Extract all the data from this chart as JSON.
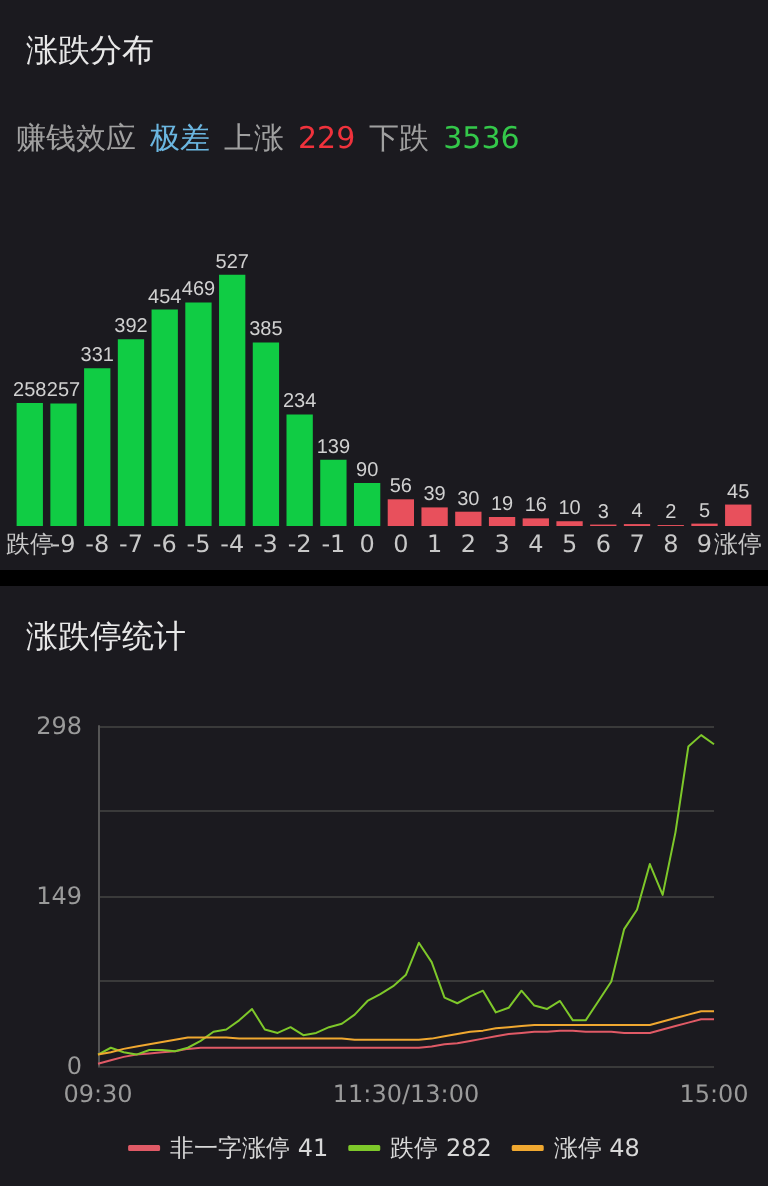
{
  "chart_data": [
    {
      "type": "bar",
      "title": "涨跌分布",
      "annotations": [
        "赚钱效应",
        "极差",
        "上涨",
        "229",
        "下跌",
        "3536"
      ],
      "categories": [
        "跌停",
        "-9",
        "-8",
        "-7",
        "-6",
        "-5",
        "-4",
        "-3",
        "-2",
        "-1",
        "0",
        "0",
        "1",
        "2",
        "3",
        "4",
        "5",
        "6",
        "7",
        "8",
        "9",
        "涨停"
      ],
      "values": [
        258,
        257,
        331,
        392,
        454,
        469,
        527,
        385,
        234,
        139,
        90,
        56,
        39,
        30,
        19,
        16,
        10,
        3,
        4,
        2,
        5,
        45
      ],
      "colors": [
        "#10cc44",
        "#10cc44",
        "#10cc44",
        "#10cc44",
        "#10cc44",
        "#10cc44",
        "#10cc44",
        "#10cc44",
        "#10cc44",
        "#10cc44",
        "#10cc44",
        "#e8505c",
        "#e8505c",
        "#e8505c",
        "#e8505c",
        "#e8505c",
        "#e8505c",
        "#e8505c",
        "#e8505c",
        "#e8505c",
        "#e8505c",
        "#e8505c"
      ],
      "data_labels": true,
      "tick_labels": "x"
    },
    {
      "type": "line",
      "title": "涨跌停统计",
      "categories": [
        "09:30",
        null,
        null,
        null,
        null,
        null,
        null,
        null,
        null,
        null,
        null,
        null,
        null,
        null,
        null,
        null,
        null,
        null,
        null,
        null,
        null,
        null,
        null,
        null,
        "11:30/13:00",
        null,
        null,
        null,
        null,
        null,
        null,
        null,
        null,
        null,
        null,
        null,
        null,
        null,
        null,
        null,
        null,
        null,
        null,
        null,
        null,
        null,
        null,
        null,
        "15:00"
      ],
      "ylim": [
        0,
        298
      ],
      "yticks": [
        0,
        {
          "value": 74.5,
          "label": null
        },
        149,
        {
          "value": 223.5,
          "label": null
        },
        298
      ],
      "grid": "y",
      "legend": "bottom",
      "series": [
        {
          "name": "非一字涨停 41",
          "color": "#e05a66",
          "values": [
            2,
            5,
            8,
            10,
            11,
            12,
            13,
            15,
            16,
            16,
            16,
            16,
            16,
            16,
            16,
            16,
            16,
            16,
            16,
            16,
            16,
            16,
            16,
            16,
            16,
            16,
            17,
            19,
            20,
            22,
            24,
            26,
            28,
            29,
            30,
            30,
            31,
            31,
            30,
            30,
            30,
            29,
            29,
            29,
            32,
            35,
            38,
            41,
            41
          ]
        },
        {
          "name": "跌停 282",
          "color": "#7ec82a",
          "values": [
            10,
            16,
            12,
            10,
            14,
            14,
            13,
            16,
            22,
            30,
            32,
            40,
            50,
            32,
            29,
            34,
            27,
            29,
            34,
            37,
            45,
            57,
            63,
            70,
            80,
            108,
            91,
            60,
            55,
            61,
            66,
            47,
            51,
            66,
            53,
            50,
            57,
            40,
            40,
            57,
            74,
            120,
            137,
            177,
            150,
            205,
            280,
            290,
            282
          ]
        },
        {
          "name": "涨停 48",
          "color": "#f0a830",
          "values": [
            10,
            12,
            15,
            17,
            19,
            21,
            23,
            25,
            25,
            25,
            25,
            24,
            24,
            24,
            24,
            24,
            24,
            24,
            24,
            24,
            23,
            23,
            23,
            23,
            23,
            23,
            24,
            26,
            28,
            30,
            31,
            33,
            34,
            35,
            36,
            36,
            36,
            36,
            36,
            36,
            36,
            36,
            36,
            36,
            39,
            42,
            45,
            48,
            48
          ]
        }
      ]
    }
  ]
}
